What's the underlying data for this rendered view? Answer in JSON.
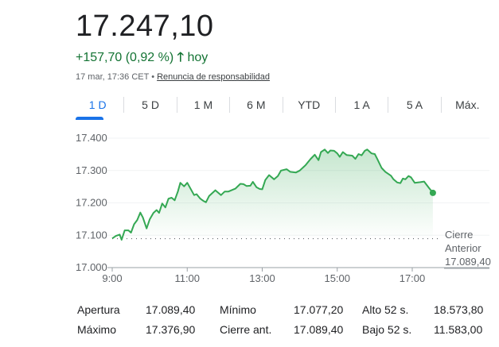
{
  "quote": {
    "price": "17.247,10",
    "change": "+157,70 (0,92 %)",
    "arrow_icon": "arrow-up-icon",
    "period": "hoy",
    "timestamp": "17 mar, 17:36 CET",
    "separator": "•",
    "disclaimer": "Renuncia de responsabilidad"
  },
  "tabs": [
    {
      "label": "1 D",
      "active": true
    },
    {
      "label": "5 D"
    },
    {
      "label": "1 M"
    },
    {
      "label": "6 M"
    },
    {
      "label": "YTD"
    },
    {
      "label": "1 A"
    },
    {
      "label": "5 A"
    },
    {
      "label": "Máx."
    }
  ],
  "colors": {
    "up": "#137333",
    "line": "#34a853",
    "accent": "#1a73e8"
  },
  "chart_data": {
    "type": "area",
    "xlim": [
      "9:00",
      "18:10"
    ],
    "ylim": [
      17000,
      17420
    ],
    "yticks": [
      "17.400",
      "17.300",
      "17.200",
      "17.100",
      "17.000"
    ],
    "ytick_values": [
      17400,
      17300,
      17200,
      17100,
      17000
    ],
    "xticks": [
      "9:00",
      "11:00",
      "13:00",
      "15:00",
      "17:00"
    ],
    "previous_close": {
      "label_line1": "Cierre",
      "label_line2": "Anterior",
      "value": "17.089,40",
      "numeric": 17089.4
    },
    "grid": true,
    "points": [
      [
        "9:00",
        17090
      ],
      [
        "9:06",
        17098
      ],
      [
        "9:12",
        17102
      ],
      [
        "9:15",
        17086
      ],
      [
        "9:20",
        17115
      ],
      [
        "9:26",
        17115
      ],
      [
        "9:30",
        17108
      ],
      [
        "9:35",
        17134
      ],
      [
        "9:40",
        17147
      ],
      [
        "9:45",
        17170
      ],
      [
        "9:49",
        17155
      ],
      [
        "9:55",
        17121
      ],
      [
        "10:00",
        17149
      ],
      [
        "10:06",
        17169
      ],
      [
        "10:11",
        17178
      ],
      [
        "10:15",
        17169
      ],
      [
        "10:20",
        17198
      ],
      [
        "10:25",
        17186
      ],
      [
        "10:30",
        17213
      ],
      [
        "10:35",
        17216
      ],
      [
        "10:40",
        17208
      ],
      [
        "10:45",
        17235
      ],
      [
        "10:49",
        17262
      ],
      [
        "10:55",
        17251
      ],
      [
        "11:00",
        17262
      ],
      [
        "11:05",
        17245
      ],
      [
        "11:11",
        17224
      ],
      [
        "11:15",
        17227
      ],
      [
        "11:21",
        17213
      ],
      [
        "11:26",
        17206
      ],
      [
        "11:30",
        17202
      ],
      [
        "11:35",
        17221
      ],
      [
        "11:45",
        17239
      ],
      [
        "11:54",
        17224
      ],
      [
        "12:00",
        17235
      ],
      [
        "12:06",
        17235
      ],
      [
        "12:12",
        17240
      ],
      [
        "12:17",
        17244
      ],
      [
        "12:25",
        17259
      ],
      [
        "12:30",
        17258
      ],
      [
        "12:35",
        17252
      ],
      [
        "12:41",
        17253
      ],
      [
        "12:45",
        17265
      ],
      [
        "12:51",
        17248
      ],
      [
        "12:56",
        17243
      ],
      [
        "13:00",
        17242
      ],
      [
        "13:05",
        17271
      ],
      [
        "13:11",
        17286
      ],
      [
        "13:19",
        17273
      ],
      [
        "13:25",
        17283
      ],
      [
        "13:30",
        17300
      ],
      [
        "13:39",
        17304
      ],
      [
        "13:45",
        17296
      ],
      [
        "13:54",
        17294
      ],
      [
        "14:00",
        17300
      ],
      [
        "14:09",
        17316
      ],
      [
        "14:17",
        17335
      ],
      [
        "14:24",
        17349
      ],
      [
        "14:30",
        17332
      ],
      [
        "14:34",
        17357
      ],
      [
        "14:40",
        17365
      ],
      [
        "14:45",
        17354
      ],
      [
        "14:49",
        17362
      ],
      [
        "14:55",
        17361
      ],
      [
        "15:00",
        17353
      ],
      [
        "15:04",
        17342
      ],
      [
        "15:09",
        17357
      ],
      [
        "15:15",
        17348
      ],
      [
        "15:24",
        17346
      ],
      [
        "15:29",
        17336
      ],
      [
        "15:34",
        17351
      ],
      [
        "15:39",
        17347
      ],
      [
        "15:44",
        17361
      ],
      [
        "15:48",
        17365
      ],
      [
        "15:55",
        17353
      ],
      [
        "16:00",
        17351
      ],
      [
        "16:04",
        17336
      ],
      [
        "16:11",
        17308
      ],
      [
        "16:17",
        17296
      ],
      [
        "16:26",
        17284
      ],
      [
        "16:30",
        17273
      ],
      [
        "16:36",
        17263
      ],
      [
        "16:41",
        17261
      ],
      [
        "16:45",
        17275
      ],
      [
        "16:49",
        17273
      ],
      [
        "16:54",
        17283
      ],
      [
        "16:58",
        17279
      ],
      [
        "17:04",
        17262
      ],
      [
        "17:13",
        17264
      ],
      [
        "17:19",
        17266
      ],
      [
        "17:26",
        17248
      ],
      [
        "17:33",
        17231
      ]
    ]
  },
  "stats": [
    {
      "label": "Apertura",
      "value": "17.089,40"
    },
    {
      "label": "Mínimo",
      "value": "17.077,20"
    },
    {
      "label": "Alto 52 s.",
      "value": "18.573,80"
    },
    {
      "label": "Máximo",
      "value": "17.376,90"
    },
    {
      "label": "Cierre ant.",
      "value": "17.089,40"
    },
    {
      "label": "Bajo 52 s.",
      "value": "11.583,00"
    }
  ]
}
